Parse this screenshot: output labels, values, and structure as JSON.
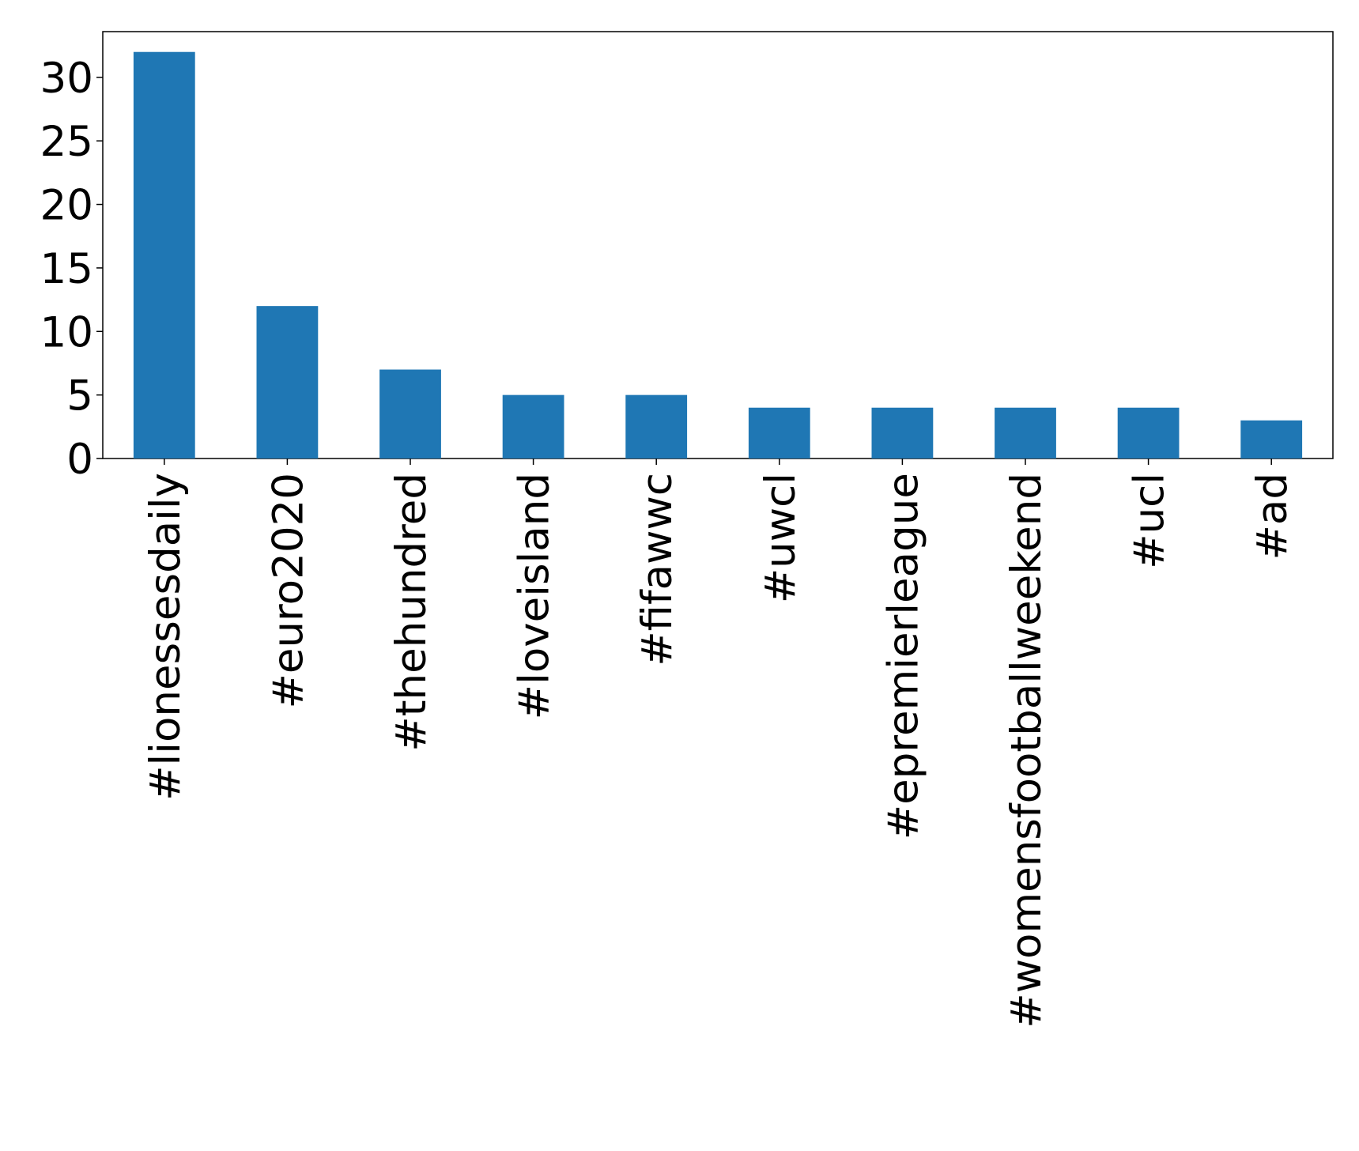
{
  "chart_data": {
    "type": "bar",
    "categories": [
      "#lionessesdaily",
      "#euro2020",
      "#thehundred",
      "#loveisland",
      "#fifawwc",
      "#uwcl",
      "#epremierleague",
      "#womensfootballweekend",
      "#ucl",
      "#ad"
    ],
    "values": [
      32,
      12,
      7,
      5,
      5,
      4,
      4,
      4,
      4,
      3
    ],
    "color": "#1f77b4",
    "ylim": [
      0,
      33.6
    ],
    "yticks": [
      0,
      5,
      10,
      15,
      20,
      25,
      30
    ],
    "grid": false
  }
}
